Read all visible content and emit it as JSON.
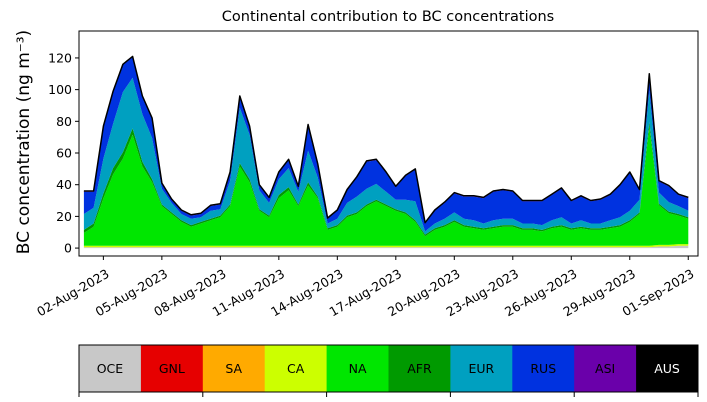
{
  "chart_data": {
    "type": "area",
    "stacked": true,
    "title": "Continental contribution to BC concentrations",
    "ylabel": "BC concentration (ng m⁻³)",
    "xlabel": "",
    "ylim": [
      -5,
      137
    ],
    "yticks": [
      0,
      20,
      40,
      60,
      80,
      100,
      120
    ],
    "xlim": [
      "2023-07-31T18:00",
      "2023-09-01T12:00"
    ],
    "x_tick_labels": [
      "02-Aug-2023",
      "05-Aug-2023",
      "08-Aug-2023",
      "11-Aug-2023",
      "14-Aug-2023",
      "17-Aug-2023",
      "20-Aug-2023",
      "23-Aug-2023",
      "26-Aug-2023",
      "29-Aug-2023",
      "01-Sep-2023"
    ],
    "x_tick_dates": [
      "2023-08-02",
      "2023-08-05",
      "2023-08-08",
      "2023-08-11",
      "2023-08-14",
      "2023-08-17",
      "2023-08-20",
      "2023-08-23",
      "2023-08-26",
      "2023-08-29",
      "2023-09-01"
    ],
    "x": [
      "2023-08-01T00:00",
      "2023-08-01T12:00",
      "2023-08-02T00:00",
      "2023-08-02T12:00",
      "2023-08-03T00:00",
      "2023-08-03T12:00",
      "2023-08-04T00:00",
      "2023-08-04T12:00",
      "2023-08-05T00:00",
      "2023-08-05T12:00",
      "2023-08-06T00:00",
      "2023-08-06T12:00",
      "2023-08-07T00:00",
      "2023-08-07T12:00",
      "2023-08-08T00:00",
      "2023-08-08T12:00",
      "2023-08-09T00:00",
      "2023-08-09T12:00",
      "2023-08-10T00:00",
      "2023-08-10T12:00",
      "2023-08-11T00:00",
      "2023-08-11T12:00",
      "2023-08-12T00:00",
      "2023-08-12T12:00",
      "2023-08-13T00:00",
      "2023-08-13T12:00",
      "2023-08-14T00:00",
      "2023-08-14T12:00",
      "2023-08-15T00:00",
      "2023-08-15T12:00",
      "2023-08-16T00:00",
      "2023-08-16T12:00",
      "2023-08-17T00:00",
      "2023-08-17T12:00",
      "2023-08-18T00:00",
      "2023-08-18T12:00",
      "2023-08-19T00:00",
      "2023-08-19T12:00",
      "2023-08-20T00:00",
      "2023-08-20T12:00",
      "2023-08-21T00:00",
      "2023-08-21T12:00",
      "2023-08-22T00:00",
      "2023-08-22T12:00",
      "2023-08-23T00:00",
      "2023-08-23T12:00",
      "2023-08-24T00:00",
      "2023-08-24T12:00",
      "2023-08-25T00:00",
      "2023-08-25T12:00",
      "2023-08-26T00:00",
      "2023-08-26T12:00",
      "2023-08-27T00:00",
      "2023-08-27T12:00",
      "2023-08-28T00:00",
      "2023-08-28T12:00",
      "2023-08-29T00:00",
      "2023-08-29T12:00",
      "2023-08-30T00:00",
      "2023-08-30T12:00",
      "2023-08-31T00:00",
      "2023-08-31T12:00",
      "2023-09-01T00:00"
    ],
    "series": [
      {
        "name": "OCE",
        "color": "#c8c8c8",
        "values": [
          0.5,
          0.5,
          0.5,
          0.5,
          0.5,
          0.5,
          0.5,
          0.5,
          0.5,
          0.5,
          0.5,
          0.5,
          0.5,
          0.5,
          0.5,
          0.5,
          0.5,
          0.5,
          0.5,
          0.5,
          0.5,
          0.5,
          0.5,
          0.5,
          0.5,
          0.5,
          0.5,
          0.5,
          0.5,
          0.5,
          0.5,
          0.5,
          0.5,
          0.5,
          0.5,
          0.5,
          0.5,
          0.5,
          0.5,
          0.5,
          0.5,
          0.5,
          0.5,
          0.5,
          0.5,
          0.5,
          0.5,
          0.5,
          0.5,
          0.5,
          0.5,
          0.5,
          0.5,
          0.5,
          0.5,
          0.5,
          0.5,
          0.5,
          0.5,
          1,
          1,
          1.5,
          1.5
        ]
      },
      {
        "name": "GNL",
        "color": "#e60000",
        "values": [
          0,
          0,
          0,
          0,
          0,
          0,
          0,
          0,
          0,
          0,
          0,
          0,
          0,
          0,
          0,
          0,
          0,
          0,
          0,
          0,
          0,
          0,
          0,
          0,
          0,
          0,
          0,
          0,
          0,
          0,
          0,
          0,
          0,
          0,
          0,
          0,
          0,
          0,
          0,
          0,
          0,
          0,
          0,
          0,
          0,
          0,
          0,
          0,
          0,
          0,
          0,
          0,
          0,
          0,
          0,
          0,
          0,
          0,
          0,
          0,
          0,
          0,
          0
        ]
      },
      {
        "name": "SA",
        "color": "#ffaa00",
        "values": [
          0,
          0,
          0,
          0,
          0,
          0,
          0,
          0,
          0,
          0,
          0,
          0,
          0,
          0,
          0,
          0,
          0,
          0,
          0,
          0,
          0,
          0,
          0,
          0,
          0,
          0,
          0,
          0,
          0,
          0,
          0,
          0,
          0,
          0,
          0,
          0,
          0,
          0,
          0,
          0,
          0,
          0,
          0,
          0,
          0,
          0,
          0,
          0,
          0,
          0,
          0,
          0,
          0,
          0,
          0,
          0,
          0,
          0,
          0,
          0,
          0,
          0,
          0
        ]
      },
      {
        "name": "CA",
        "color": "#ccff00",
        "values": [
          1,
          1,
          1,
          1,
          1,
          1,
          1,
          1,
          1,
          1,
          1,
          1,
          1,
          1,
          1,
          1,
          1,
          1,
          1,
          1,
          1,
          1,
          1,
          1,
          1,
          1,
          1,
          1,
          1,
          1,
          1,
          1,
          1,
          1,
          1,
          1,
          1,
          1,
          1,
          1,
          1,
          1,
          1,
          1,
          1,
          1,
          1,
          1,
          1,
          1,
          1,
          1,
          1,
          1,
          1,
          1,
          1,
          1,
          1,
          1,
          1,
          1,
          1
        ]
      },
      {
        "name": "NA",
        "color": "#00e600",
        "values": [
          8,
          12,
          30,
          45,
          55,
          70,
          50,
          40,
          25,
          20,
          15,
          12,
          14,
          16,
          18,
          25,
          50,
          40,
          22,
          18,
          30,
          35,
          25,
          38,
          30,
          10,
          12,
          18,
          20,
          25,
          28,
          25,
          22,
          20,
          15,
          6,
          10,
          12,
          15,
          12,
          11,
          10,
          11,
          12,
          12,
          10,
          10,
          9,
          11,
          12,
          10,
          11,
          10,
          10,
          11,
          12,
          15,
          20,
          75,
          25,
          20,
          18,
          16
        ]
      },
      {
        "name": "AFR",
        "color": "#009a00",
        "values": [
          2,
          2,
          3,
          4,
          4,
          4,
          3,
          2,
          1,
          1,
          1,
          1,
          1,
          1,
          1,
          1,
          2,
          2,
          1,
          1,
          2,
          2,
          1,
          2,
          1,
          1,
          1,
          1,
          1,
          1,
          1,
          1,
          1,
          1,
          1,
          1,
          1,
          1,
          1,
          1,
          1,
          1,
          1,
          1,
          1,
          1,
          1,
          1,
          1,
          1,
          1,
          1,
          1,
          1,
          1,
          1,
          1,
          1,
          3,
          1,
          1,
          1,
          1
        ]
      },
      {
        "name": "EUR",
        "color": "#00a0c0",
        "values": [
          10,
          10,
          22,
          28,
          38,
          32,
          30,
          26,
          10,
          6,
          4,
          4,
          3,
          5,
          4,
          15,
          35,
          28,
          12,
          8,
          10,
          12,
          8,
          20,
          12,
          3,
          4,
          8,
          10,
          10,
          10,
          8,
          6,
          8,
          12,
          2,
          3,
          4,
          5,
          4,
          4,
          3,
          4,
          4,
          4,
          3,
          3,
          3,
          4,
          5,
          3,
          4,
          3,
          3,
          4,
          5,
          6,
          8,
          20,
          7,
          6,
          5,
          4
        ]
      },
      {
        "name": "RUS",
        "color": "#0032e0",
        "values": [
          14,
          10,
          20,
          20,
          17,
          13,
          11,
          12,
          3,
          2,
          2,
          2,
          2,
          3,
          3,
          5,
          7,
          5,
          3,
          3,
          4,
          5,
          3,
          16,
          8,
          3,
          5,
          8,
          12,
          17,
          15,
          12,
          8,
          15,
          20,
          5,
          8,
          10,
          12,
          14,
          15,
          16,
          18,
          18,
          17,
          14,
          14,
          15,
          16,
          18,
          14,
          15,
          14,
          15,
          16,
          20,
          24,
          6,
          10,
          7,
          10,
          7,
          8
        ]
      },
      {
        "name": "ASI",
        "color": "#6a00aa",
        "values": [
          0.5,
          0.5,
          0.5,
          0.5,
          0.5,
          0.5,
          0.5,
          0.5,
          0.5,
          0.5,
          0.5,
          0.5,
          0.5,
          0.5,
          0.5,
          0.5,
          0.5,
          0.5,
          0.5,
          0.5,
          0.5,
          0.5,
          0.5,
          0.5,
          0.5,
          0.5,
          0.5,
          0.5,
          0.5,
          0.5,
          0.5,
          0.5,
          0.5,
          0.5,
          0.5,
          0.5,
          0.5,
          0.5,
          0.5,
          0.5,
          0.5,
          0.5,
          0.5,
          0.5,
          0.5,
          0.5,
          0.5,
          0.5,
          0.5,
          0.5,
          0.5,
          0.5,
          0.5,
          0.5,
          0.5,
          0.5,
          0.5,
          0.5,
          0.5,
          0.5,
          0.5,
          0.5,
          0.5
        ]
      },
      {
        "name": "AUS",
        "color": "#000000",
        "values": [
          0,
          0,
          0,
          0,
          0,
          0,
          0,
          0,
          0,
          0,
          0,
          0,
          0,
          0,
          0,
          0,
          0,
          0,
          0,
          0,
          0,
          0,
          0,
          0,
          0,
          0,
          0,
          0,
          0,
          0,
          0,
          0,
          0,
          0,
          0,
          0,
          0,
          0,
          0,
          0,
          0,
          0,
          0,
          0,
          0,
          0,
          0,
          0,
          0,
          0,
          0,
          0,
          0,
          0,
          0,
          0,
          0,
          0,
          0,
          0,
          0,
          0,
          0
        ]
      }
    ],
    "total_line_color": "#000000",
    "legend": {
      "placement": "bottom",
      "style": "colorbar"
    }
  }
}
